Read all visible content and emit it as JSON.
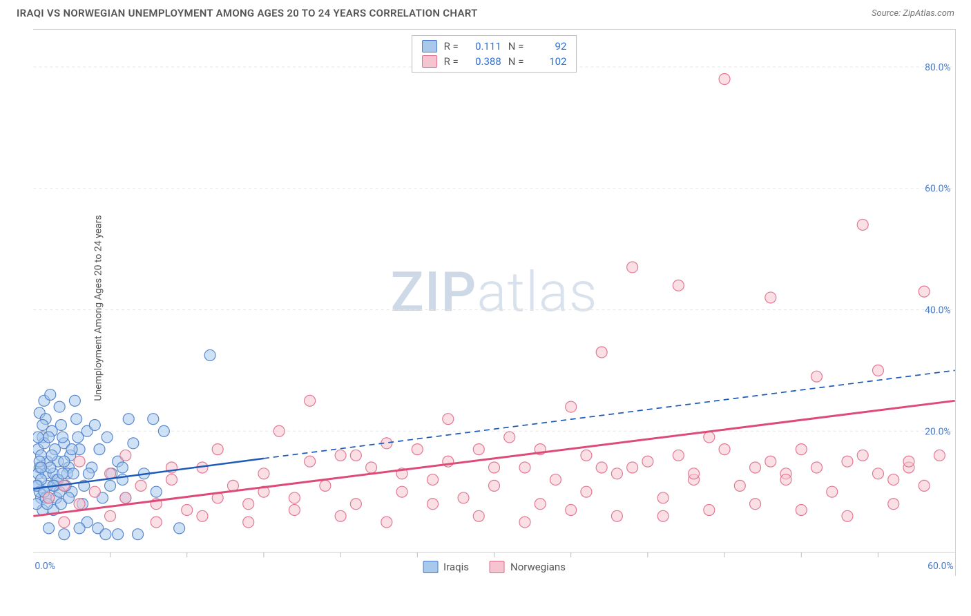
{
  "title": "IRAQI VS NORWEGIAN UNEMPLOYMENT AMONG AGES 20 TO 24 YEARS CORRELATION CHART",
  "source": "Source: ZipAtlas.com",
  "y_axis_label": "Unemployment Among Ages 20 to 24 years",
  "watermark_bold": "ZIP",
  "watermark_light": "atlas",
  "chart": {
    "type": "scatter",
    "xlim": [
      0,
      60
    ],
    "ylim": [
      0,
      85
    ],
    "x_ticks": [
      0,
      60
    ],
    "x_tick_labels": [
      "0.0%",
      "60.0%"
    ],
    "y_ticks": [
      20,
      40,
      60,
      80
    ],
    "y_tick_labels": [
      "20.0%",
      "40.0%",
      "60.0%",
      "80.0%"
    ],
    "tick_color": "#4a7bc8",
    "tick_fontsize": 14,
    "grid_color": "#e6e6e6",
    "grid_dash": "4,4",
    "background_color": "#ffffff",
    "minor_tick_x_step": 5,
    "minor_tick_color": "#bbbbbb",
    "marker_radius": 8,
    "marker_opacity": 0.55,
    "marker_stroke_width": 1.2,
    "series": [
      {
        "name": "Iraqis",
        "legend_label": "Iraqis",
        "color_fill": "#a8c8ec",
        "color_stroke": "#4a7bc8",
        "R": "0.111",
        "N": "92",
        "regression": {
          "x1": 0,
          "y1": 10.5,
          "x2": 15,
          "y2": 15.5,
          "x2_ext": 60,
          "y2_ext": 30,
          "color": "#1e5bb8",
          "width": 2.5,
          "dash_ext": "8,6"
        },
        "points": [
          [
            0.3,
            11
          ],
          [
            0.5,
            9
          ],
          [
            0.4,
            14
          ],
          [
            0.6,
            7
          ],
          [
            0.8,
            13
          ],
          [
            0.3,
            17
          ],
          [
            1.0,
            9
          ],
          [
            1.2,
            20
          ],
          [
            0.4,
            23
          ],
          [
            0.7,
            25
          ],
          [
            1.5,
            12
          ],
          [
            1.8,
            21
          ],
          [
            0.9,
            15
          ],
          [
            2.0,
            18
          ],
          [
            2.3,
            14
          ],
          [
            1.4,
            11
          ],
          [
            0.6,
            19
          ],
          [
            0.2,
            8
          ],
          [
            1.1,
            26
          ],
          [
            1.7,
            24
          ],
          [
            2.5,
            10
          ],
          [
            3.0,
            17
          ],
          [
            2.8,
            22
          ],
          [
            3.5,
            20
          ],
          [
            1.3,
            7
          ],
          [
            0.5,
            16
          ],
          [
            2.2,
            13
          ],
          [
            1.9,
            19
          ],
          [
            0.8,
            22
          ],
          [
            1.6,
            15
          ],
          [
            3.8,
            14
          ],
          [
            4.5,
            9
          ],
          [
            4.0,
            21
          ],
          [
            5.0,
            11
          ],
          [
            5.5,
            15
          ],
          [
            6.2,
            22
          ],
          [
            4.8,
            19
          ],
          [
            3.2,
            8
          ],
          [
            2.7,
            25
          ],
          [
            5.8,
            12
          ],
          [
            6.5,
            18
          ],
          [
            7.2,
            13
          ],
          [
            7.8,
            22
          ],
          [
            8.5,
            20
          ],
          [
            6.0,
            9
          ],
          [
            1.0,
            4
          ],
          [
            2.0,
            3
          ],
          [
            3.5,
            5
          ],
          [
            4.2,
            4
          ],
          [
            5.5,
            3
          ],
          [
            0.4,
            10
          ],
          [
            0.9,
            11
          ],
          [
            1.3,
            13
          ],
          [
            0.7,
            18
          ],
          [
            1.5,
            9
          ],
          [
            2.1,
            11
          ],
          [
            0.3,
            13
          ],
          [
            0.6,
            21
          ],
          [
            1.8,
            8
          ],
          [
            2.4,
            16
          ],
          [
            0.5,
            12
          ],
          [
            1.1,
            14
          ],
          [
            0.8,
            9
          ],
          [
            1.4,
            17
          ],
          [
            0.2,
            11
          ],
          [
            1.0,
            19
          ],
          [
            2.6,
            13
          ],
          [
            3.3,
            11
          ],
          [
            1.7,
            10
          ],
          [
            0.4,
            15
          ],
          [
            2.9,
            19
          ],
          [
            0.9,
            8
          ],
          [
            1.6,
            12
          ],
          [
            2.3,
            9
          ],
          [
            0.5,
            14
          ],
          [
            1.2,
            16
          ],
          [
            3.6,
            13
          ],
          [
            4.3,
            17
          ],
          [
            5.1,
            13
          ],
          [
            2.0,
            15
          ],
          [
            0.7,
            10
          ],
          [
            1.3,
            11
          ],
          [
            3.0,
            4
          ],
          [
            4.7,
            3
          ],
          [
            6.8,
            3
          ],
          [
            8.0,
            10
          ],
          [
            9.5,
            4
          ],
          [
            1.9,
            13
          ],
          [
            2.5,
            17
          ],
          [
            0.3,
            19
          ],
          [
            11.5,
            32.5
          ],
          [
            5.8,
            14
          ]
        ]
      },
      {
        "name": "Norwegians",
        "legend_label": "Norwegians",
        "color_fill": "#f6c4d0",
        "color_stroke": "#e06a8a",
        "R": "0.388",
        "N": "102",
        "regression": {
          "x1": 0,
          "y1": 6,
          "x2": 60,
          "y2": 25,
          "color": "#dd4b78",
          "width": 3,
          "dash_ext": ""
        },
        "points": [
          [
            1,
            9
          ],
          [
            2,
            11
          ],
          [
            3,
            8
          ],
          [
            4,
            10
          ],
          [
            5,
            13
          ],
          [
            6,
            9
          ],
          [
            7,
            11
          ],
          [
            8,
            8
          ],
          [
            9,
            12
          ],
          [
            10,
            7
          ],
          [
            11,
            14
          ],
          [
            12,
            9
          ],
          [
            13,
            11
          ],
          [
            14,
            8
          ],
          [
            15,
            10
          ],
          [
            16,
            20
          ],
          [
            17,
            9
          ],
          [
            18,
            25
          ],
          [
            19,
            11
          ],
          [
            20,
            16
          ],
          [
            21,
            8
          ],
          [
            22,
            14
          ],
          [
            23,
            18
          ],
          [
            24,
            10
          ],
          [
            25,
            17
          ],
          [
            26,
            12
          ],
          [
            27,
            22
          ],
          [
            28,
            9
          ],
          [
            29,
            17
          ],
          [
            30,
            11
          ],
          [
            31,
            19
          ],
          [
            32,
            14
          ],
          [
            33,
            8
          ],
          [
            34,
            12
          ],
          [
            35,
            24
          ],
          [
            36,
            10
          ],
          [
            37,
            33
          ],
          [
            38,
            13
          ],
          [
            39,
            47
          ],
          [
            40,
            15
          ],
          [
            41,
            9
          ],
          [
            42,
            44
          ],
          [
            43,
            12
          ],
          [
            44,
            19
          ],
          [
            45,
            78
          ],
          [
            46,
            11
          ],
          [
            47,
            14
          ],
          [
            48,
            42
          ],
          [
            49,
            13
          ],
          [
            50,
            17
          ],
          [
            51,
            29
          ],
          [
            52,
            10
          ],
          [
            53,
            15
          ],
          [
            54,
            54
          ],
          [
            55,
            30
          ],
          [
            56,
            12
          ],
          [
            57,
            14
          ],
          [
            58,
            43
          ],
          [
            59,
            16
          ],
          [
            2,
            5
          ],
          [
            5,
            6
          ],
          [
            8,
            5
          ],
          [
            11,
            6
          ],
          [
            14,
            5
          ],
          [
            17,
            7
          ],
          [
            20,
            6
          ],
          [
            23,
            5
          ],
          [
            26,
            8
          ],
          [
            29,
            6
          ],
          [
            32,
            5
          ],
          [
            35,
            7
          ],
          [
            38,
            6
          ],
          [
            41,
            6
          ],
          [
            44,
            7
          ],
          [
            47,
            8
          ],
          [
            50,
            7
          ],
          [
            53,
            6
          ],
          [
            56,
            8
          ],
          [
            3,
            15
          ],
          [
            6,
            16
          ],
          [
            9,
            14
          ],
          [
            12,
            17
          ],
          [
            15,
            13
          ],
          [
            18,
            15
          ],
          [
            21,
            16
          ],
          [
            24,
            13
          ],
          [
            27,
            15
          ],
          [
            30,
            14
          ],
          [
            33,
            17
          ],
          [
            36,
            16
          ],
          [
            39,
            14
          ],
          [
            42,
            16
          ],
          [
            45,
            17
          ],
          [
            48,
            15
          ],
          [
            51,
            14
          ],
          [
            54,
            16
          ],
          [
            57,
            15
          ],
          [
            58,
            11
          ],
          [
            55,
            13
          ],
          [
            49,
            12
          ],
          [
            43,
            13
          ],
          [
            37,
            14
          ]
        ]
      }
    ],
    "corr_box": {
      "R_label": "R =",
      "N_label": "N ="
    }
  }
}
